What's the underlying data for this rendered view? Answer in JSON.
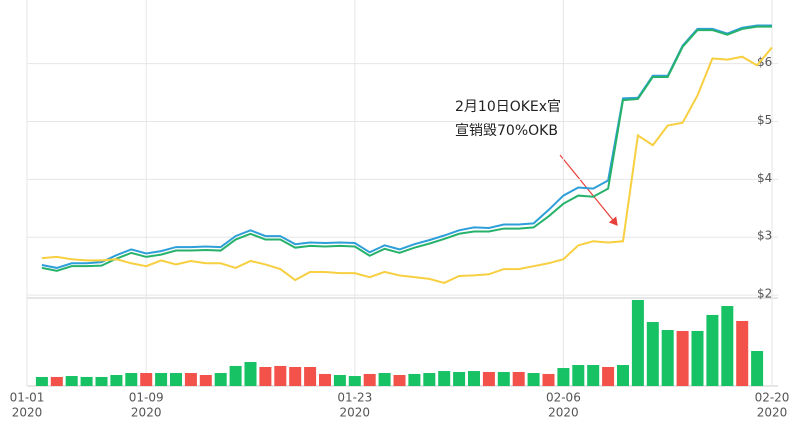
{
  "chart_data": {
    "type": "line",
    "x": [
      "2020-01-02",
      "2020-01-03",
      "2020-01-04",
      "2020-01-05",
      "2020-01-06",
      "2020-01-07",
      "2020-01-08",
      "2020-01-09",
      "2020-01-10",
      "2020-01-11",
      "2020-01-12",
      "2020-01-13",
      "2020-01-14",
      "2020-01-15",
      "2020-01-16",
      "2020-01-17",
      "2020-01-18",
      "2020-01-19",
      "2020-01-20",
      "2020-01-21",
      "2020-01-22",
      "2020-01-23",
      "2020-01-24",
      "2020-01-25",
      "2020-01-26",
      "2020-01-27",
      "2020-01-28",
      "2020-01-29",
      "2020-01-30",
      "2020-01-31",
      "2020-02-01",
      "2020-02-02",
      "2020-02-03",
      "2020-02-04",
      "2020-02-05",
      "2020-02-06",
      "2020-02-07",
      "2020-02-08",
      "2020-02-09",
      "2020-02-10",
      "2020-02-11",
      "2020-02-12",
      "2020-02-13",
      "2020-02-14",
      "2020-02-15",
      "2020-02-16",
      "2020-02-17",
      "2020-02-18",
      "2020-02-19",
      "2020-02-20"
    ],
    "xlim": [
      "2020-01-01",
      "2020-02-20"
    ],
    "xticks": [
      {
        "value": "2020-01-01",
        "label": [
          "01-01",
          "2020"
        ]
      },
      {
        "value": "2020-01-09",
        "label": [
          "01-09",
          "2020"
        ]
      },
      {
        "value": "2020-01-23",
        "label": [
          "01-23",
          "2020"
        ]
      },
      {
        "value": "2020-02-06",
        "label": [
          "02-06",
          "2020"
        ]
      },
      {
        "value": "2020-02-20",
        "label": [
          "02-20",
          "2020"
        ]
      }
    ],
    "ylim": [
      1.95,
      7.1
    ],
    "yticks": [
      {
        "value": 2,
        "label": "$2"
      },
      {
        "value": 3,
        "label": "$3"
      },
      {
        "value": 4,
        "label": "$4"
      },
      {
        "value": 5,
        "label": "$5"
      },
      {
        "value": 6,
        "label": "$6"
      }
    ],
    "grid": true,
    "series": [
      {
        "color": "#2e9fd8",
        "values": [
          2.52,
          2.47,
          2.55,
          2.55,
          2.57,
          2.69,
          2.79,
          2.72,
          2.76,
          2.83,
          2.83,
          2.84,
          2.83,
          3.02,
          3.12,
          3.02,
          3.02,
          2.88,
          2.91,
          2.9,
          2.91,
          2.9,
          2.74,
          2.86,
          2.79,
          2.88,
          2.95,
          3.03,
          3.12,
          3.17,
          3.16,
          3.22,
          3.22,
          3.24,
          3.47,
          3.72,
          3.86,
          3.84,
          3.98,
          5.4,
          5.41,
          5.79,
          5.79,
          6.31,
          6.6,
          6.6,
          6.52,
          6.62,
          6.66,
          6.66
        ]
      },
      {
        "color": "#27b26c",
        "values": [
          2.47,
          2.42,
          2.5,
          2.5,
          2.51,
          2.63,
          2.73,
          2.66,
          2.7,
          2.77,
          2.77,
          2.78,
          2.77,
          2.96,
          3.06,
          2.96,
          2.96,
          2.82,
          2.85,
          2.84,
          2.85,
          2.84,
          2.68,
          2.8,
          2.73,
          2.82,
          2.89,
          2.97,
          3.06,
          3.1,
          3.1,
          3.15,
          3.15,
          3.17,
          3.36,
          3.58,
          3.72,
          3.7,
          3.84,
          5.37,
          5.39,
          5.77,
          5.77,
          6.29,
          6.58,
          6.58,
          6.5,
          6.6,
          6.64,
          6.64
        ]
      },
      {
        "color": "#f7cf40",
        "values": [
          2.64,
          2.66,
          2.62,
          2.6,
          2.6,
          2.62,
          2.55,
          2.5,
          2.6,
          2.53,
          2.59,
          2.55,
          2.55,
          2.47,
          2.59,
          2.53,
          2.45,
          2.26,
          2.4,
          2.4,
          2.38,
          2.38,
          2.31,
          2.4,
          2.34,
          2.31,
          2.28,
          2.21,
          2.33,
          2.34,
          2.36,
          2.45,
          2.45,
          2.5,
          2.55,
          2.62,
          2.86,
          2.93,
          2.91,
          2.93,
          4.76,
          4.59,
          4.93,
          4.98,
          5.45,
          6.09,
          6.07,
          6.12,
          5.97,
          6.28
        ]
      }
    ],
    "volume": {
      "type": "bar",
      "ylim": [
        0,
        100
      ],
      "values": [
        10.5,
        10.5,
        11.6,
        10.5,
        10.5,
        12.8,
        15.1,
        15.1,
        15.1,
        15.1,
        15.1,
        12.8,
        15.1,
        23.3,
        27.9,
        22.1,
        23.3,
        22.1,
        22.1,
        14,
        12.8,
        11.6,
        14,
        15.1,
        12.8,
        14,
        15.1,
        17.4,
        16.3,
        17.4,
        16.3,
        16.3,
        16.3,
        15.1,
        14,
        20.9,
        24.4,
        24.4,
        22.1,
        24.4,
        100,
        74.4,
        65.1,
        64,
        64,
        82.6,
        93,
        75.6,
        40.7,
        null
      ],
      "colors": [
        "#17c264",
        "#f2524a",
        "#17c264",
        "#17c264",
        "#17c264",
        "#17c264",
        "#17c264",
        "#f2524a",
        "#17c264",
        "#17c264",
        "#f2524a",
        "#f2524a",
        "#17c264",
        "#17c264",
        "#17c264",
        "#f2524a",
        "#f2524a",
        "#f2524a",
        "#f2524a",
        "#f2524a",
        "#17c264",
        "#17c264",
        "#f2524a",
        "#17c264",
        "#f2524a",
        "#17c264",
        "#17c264",
        "#17c264",
        "#17c264",
        "#17c264",
        "#f2524a",
        "#17c264",
        "#f2524a",
        "#17c264",
        "#f2524a",
        "#17c264",
        "#17c264",
        "#17c264",
        "#f2524a",
        "#17c264",
        "#17c264",
        "#17c264",
        "#17c264",
        "#f2524a",
        "#17c264",
        "#17c264",
        "#17c264",
        "#f2524a",
        "#17c264",
        null
      ]
    },
    "annotation": {
      "lines": [
        "2月10日OKEx官",
        "宣销毁70%OKB"
      ],
      "color": "#e8403a"
    }
  }
}
